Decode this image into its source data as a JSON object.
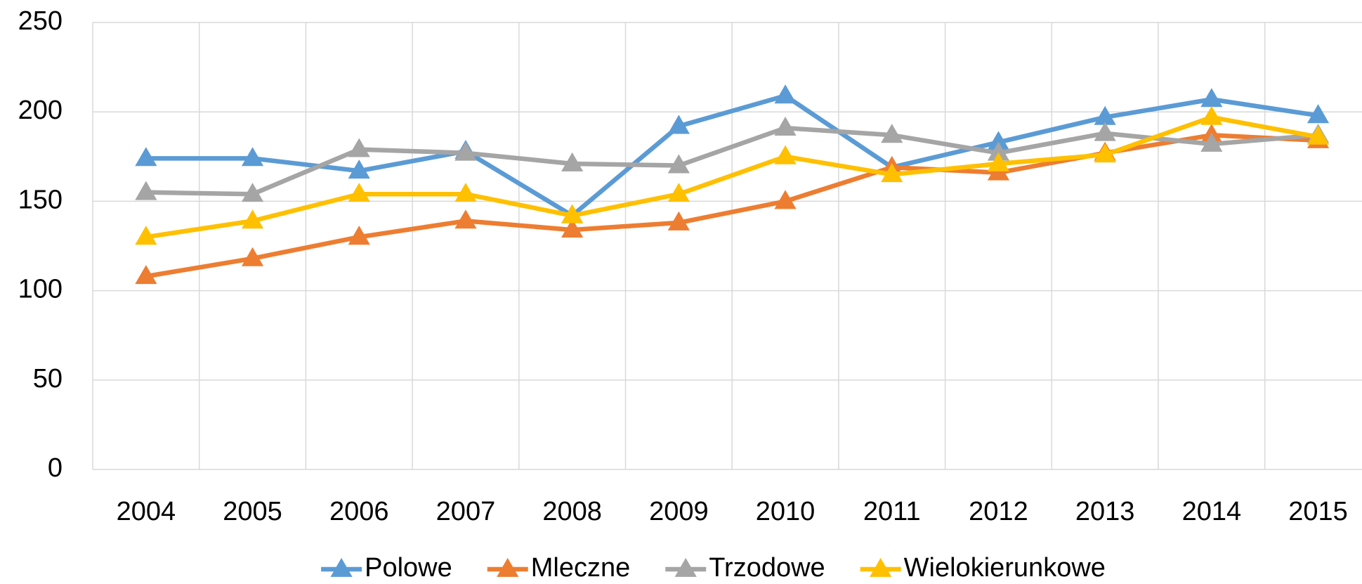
{
  "chart_data": {
    "type": "line",
    "categories": [
      "2004",
      "2005",
      "2006",
      "2007",
      "2008",
      "2009",
      "2010",
      "2011",
      "2012",
      "2013",
      "2014",
      "2015"
    ],
    "series": [
      {
        "name": "Polowe",
        "color": "#5b9bd5",
        "values": [
          174,
          174,
          167,
          178,
          142,
          192,
          209,
          169,
          183,
          197,
          207,
          198
        ]
      },
      {
        "name": "Mleczne",
        "color": "#ed7d31",
        "values": [
          108,
          118,
          130,
          139,
          134,
          138,
          150,
          169,
          166,
          177,
          187,
          184
        ]
      },
      {
        "name": "Trzodowe",
        "color": "#a5a5a5",
        "values": [
          155,
          154,
          179,
          177,
          171,
          170,
          191,
          187,
          177,
          188,
          182,
          187
        ]
      },
      {
        "name": "Wielokierunkowe",
        "color": "#ffc000",
        "values": [
          130,
          139,
          154,
          154,
          142,
          154,
          175,
          165,
          171,
          176,
          197,
          186
        ]
      }
    ],
    "ylim": [
      0,
      250
    ],
    "yticks": [
      0,
      50,
      100,
      150,
      200,
      250
    ],
    "grid": true,
    "legend": "bottom"
  }
}
